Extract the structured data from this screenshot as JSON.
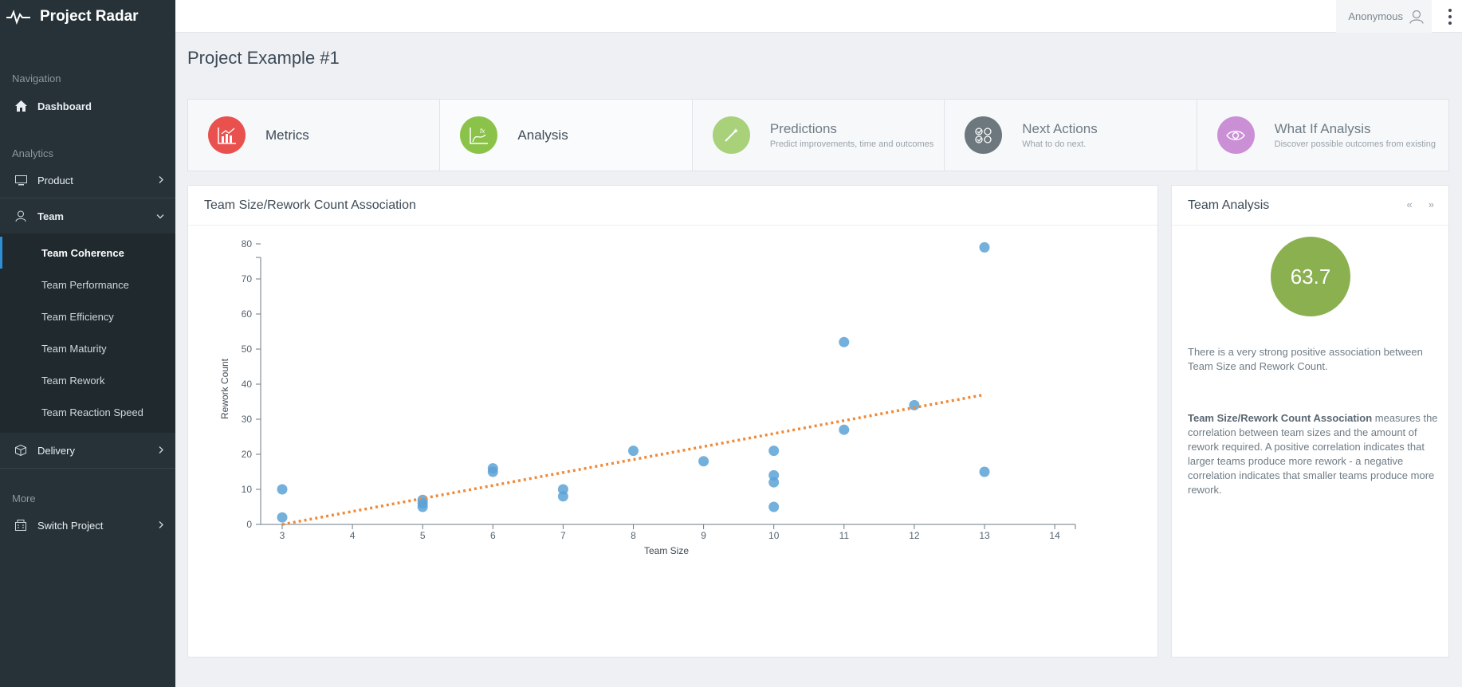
{
  "app": {
    "title": "Project Radar"
  },
  "topbar": {
    "user_name": "Anonymous"
  },
  "sidebar": {
    "sections": {
      "navigation": "Navigation",
      "analytics": "Analytics",
      "more": "More"
    },
    "dashboard": "Dashboard",
    "product": "Product",
    "team": "Team",
    "team_items": [
      "Team Coherence",
      "Team Performance",
      "Team Efficiency",
      "Team Maturity",
      "Team Rework",
      "Team Reaction Speed"
    ],
    "delivery": "Delivery",
    "switch_project": "Switch Project"
  },
  "page": {
    "title": "Project Example #1"
  },
  "tabs": [
    {
      "title": "Metrics",
      "subtitle": "",
      "color": "#e9514f",
      "icon": "bar-chart-icon"
    },
    {
      "title": "Analysis",
      "subtitle": "",
      "color": "#8bc34a",
      "icon": "function-chart-icon"
    },
    {
      "title": "Predictions",
      "subtitle": "Predict improvements, time and outcomes",
      "color": "#8bc34a",
      "icon": "magic-wand-icon"
    },
    {
      "title": "Next Actions",
      "subtitle": "What to do next.",
      "color": "#37474f",
      "icon": "checklist-icon"
    },
    {
      "title": "What If Analysis",
      "subtitle": "Discover possible outcomes from existing",
      "color": "#ba68c8",
      "icon": "eye-icon"
    }
  ],
  "chart_panel": {
    "title": "Team Size/Rework Count Association"
  },
  "analysis_panel": {
    "title": "Team Analysis",
    "prev": "«",
    "next": "»",
    "score": "63.7",
    "summary": "There is a very strong positive association between Team Size and Rework Count.",
    "detail_term": "Team Size/Rework Count Association",
    "detail_text": " measures the correlation between team sizes and the amount of rework required. A positive correlation indicates that larger teams produce more rework - a negative correlation indicates that smaller teams produce more rework."
  },
  "chart_data": {
    "type": "scatter",
    "title": "",
    "xlabel": "Team Size",
    "ylabel": "Rework Count",
    "xlim": [
      3,
      14
    ],
    "ylim": [
      0,
      85
    ],
    "xticks": [
      3,
      4,
      5,
      6,
      7,
      8,
      9,
      10,
      11,
      12,
      13,
      14
    ],
    "yticks": [
      0,
      10,
      20,
      30,
      40,
      50,
      60,
      70,
      80
    ],
    "point_color": "#5aa2d6",
    "trend_color": "#ef8a3a",
    "points": [
      [
        3,
        10
      ],
      [
        3,
        2
      ],
      [
        5,
        7
      ],
      [
        5,
        6
      ],
      [
        5,
        5
      ],
      [
        6,
        16
      ],
      [
        6,
        15
      ],
      [
        7,
        10
      ],
      [
        7,
        8
      ],
      [
        8,
        21
      ],
      [
        9,
        18
      ],
      [
        10,
        21
      ],
      [
        10,
        14
      ],
      [
        10,
        12
      ],
      [
        10,
        5
      ],
      [
        11,
        52
      ],
      [
        11,
        27
      ],
      [
        12,
        34
      ],
      [
        13,
        79
      ],
      [
        13,
        15
      ]
    ],
    "trendline": [
      [
        3,
        0
      ],
      [
        13,
        37
      ]
    ]
  }
}
